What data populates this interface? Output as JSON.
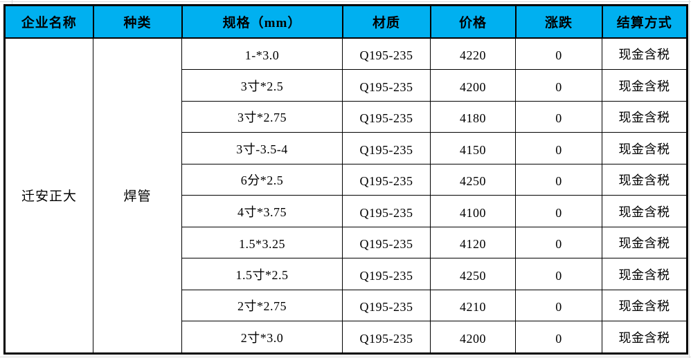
{
  "table": {
    "columns": [
      "企业名称",
      "种类",
      "规格（mm）",
      "材质",
      "价格",
      "涨跌",
      "结算方式"
    ],
    "company_name": "迁安正大",
    "category": "焊管",
    "rows": [
      {
        "spec": "1-*3.0",
        "material": "Q195-235",
        "price": "4220",
        "change": "0",
        "settlement": "现金含税"
      },
      {
        "spec": "3寸*2.5",
        "material": "Q195-235",
        "price": "4200",
        "change": "0",
        "settlement": "现金含税"
      },
      {
        "spec": "3寸*2.75",
        "material": "Q195-235",
        "price": "4180",
        "change": "0",
        "settlement": "现金含税"
      },
      {
        "spec": "3寸-3.5-4",
        "material": "Q195-235",
        "price": "4150",
        "change": "0",
        "settlement": "现金含税"
      },
      {
        "spec": "6分*2.5",
        "material": "Q195-235",
        "price": "4250",
        "change": "0",
        "settlement": "现金含税"
      },
      {
        "spec": "4寸*3.75",
        "material": "Q195-235",
        "price": "4100",
        "change": "0",
        "settlement": "现金含税"
      },
      {
        "spec": "1.5*3.25",
        "material": "Q195-235",
        "price": "4120",
        "change": "0",
        "settlement": "现金含税"
      },
      {
        "spec": "1.5寸*2.5",
        "material": "Q195-235",
        "price": "4250",
        "change": "0",
        "settlement": "现金含税"
      },
      {
        "spec": "2寸*2.75",
        "material": "Q195-235",
        "price": "4210",
        "change": "0",
        "settlement": "现金含税"
      },
      {
        "spec": "2寸*3.0",
        "material": "Q195-235",
        "price": "4200",
        "change": "0",
        "settlement": "现金含税"
      }
    ]
  },
  "colors": {
    "header_bg": "#00b0f0",
    "border": "#000000",
    "gridline": "#d9d9d9"
  }
}
